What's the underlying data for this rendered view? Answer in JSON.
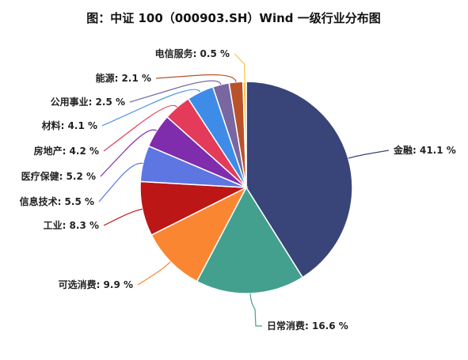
{
  "chart_data": {
    "type": "pie",
    "title": "图：中证 100（000903.SH）Wind 一级行业分布图",
    "value_suffix": " %",
    "slices": [
      {
        "label": "金融",
        "value": 41.1,
        "color": "#394479",
        "placement": "right"
      },
      {
        "label": "日常消费",
        "value": 16.6,
        "color": "#43a08f",
        "placement": "bottom"
      },
      {
        "label": "可选消费",
        "value": 9.9,
        "color": "#fb8632",
        "placement": "left"
      },
      {
        "label": "工业",
        "value": 8.3,
        "color": "#bc1616",
        "placement": "left"
      },
      {
        "label": "信息技术",
        "value": 5.5,
        "color": "#5e76e2",
        "placement": "left"
      },
      {
        "label": "医疗保健",
        "value": 5.2,
        "color": "#7f2cad",
        "placement": "left"
      },
      {
        "label": "房地产",
        "value": 4.2,
        "color": "#e33b59",
        "placement": "left"
      },
      {
        "label": "材料",
        "value": 4.1,
        "color": "#3f8ce8",
        "placement": "left"
      },
      {
        "label": "公用事业",
        "value": 2.5,
        "color": "#7967a1",
        "placement": "left"
      },
      {
        "label": "能源",
        "value": 2.1,
        "color": "#b8522b",
        "placement": "left"
      },
      {
        "label": "电信服务",
        "value": 0.5,
        "color": "#f4c84a",
        "placement": "top"
      }
    ]
  }
}
